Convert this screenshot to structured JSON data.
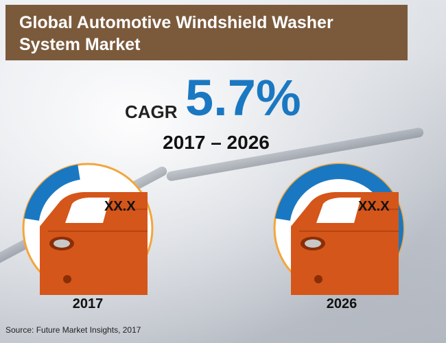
{
  "title": "Global Automotive Windshield Washer\nSystem Market",
  "cagr": {
    "label": "CAGR",
    "value": "5.7%",
    "period": "2017 – 2026"
  },
  "chart_data": {
    "type": "gauge",
    "title": "Global Automotive Windshield Washer System Market",
    "cagr": "5.7%",
    "period": "2017 – 2026",
    "categories": [
      "2017",
      "2026"
    ],
    "value_labels": [
      "XX.X",
      "XX.X"
    ],
    "relative_fill": [
      0.2,
      0.55
    ]
  },
  "source": "Source: Future Market Insights, 2017",
  "colors": {
    "banner": "#7b5a3c",
    "accent": "#1a78c2",
    "car": "#d4561a",
    "circle_border": "#f2a63a"
  },
  "icons": [
    "car-icon",
    "gauge-arc"
  ]
}
